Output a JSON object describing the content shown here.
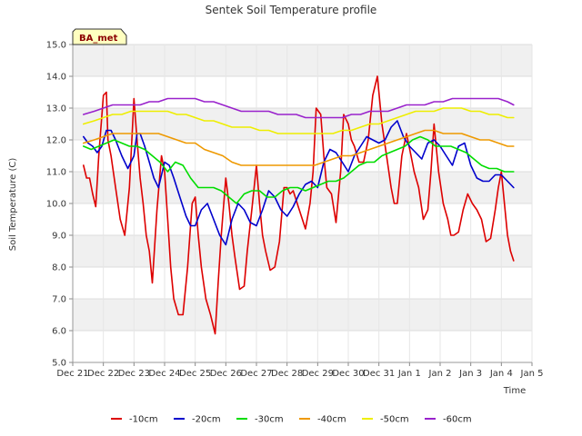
{
  "chart_data": {
    "type": "line",
    "title": "Sentek Soil Temperature profile",
    "xlabel": "Time",
    "ylabel": "Soil Temperature (C)",
    "badge": "BA_met",
    "ylim": [
      5.0,
      15.0
    ],
    "yticks": [
      "5.0",
      "6.0",
      "7.0",
      "8.0",
      "9.0",
      "10.0",
      "11.0",
      "12.0",
      "13.0",
      "14.0",
      "15.0"
    ],
    "xlim": [
      0,
      15
    ],
    "xticks": [
      "Dec 21",
      "Dec 22",
      "Dec 23",
      "Dec 24",
      "Dec 25",
      "Dec 26",
      "Dec 27",
      "Dec 28",
      "Dec 29",
      "Dec 30",
      "Dec 31",
      "Jan 1",
      "Jan 2",
      "Jan 3",
      "Jan 4",
      "Jan 5"
    ],
    "grid": true,
    "legend_position": "bottom",
    "series": [
      {
        "name": "-10cm",
        "color": "#dd0000",
        "x": [
          0.35,
          0.45,
          0.55,
          0.65,
          0.75,
          0.85,
          1.0,
          1.1,
          1.15,
          1.25,
          1.4,
          1.55,
          1.7,
          1.85,
          2.0,
          2.1,
          2.2,
          2.3,
          2.4,
          2.5,
          2.6,
          2.75,
          2.9,
          3.0,
          3.1,
          3.2,
          3.3,
          3.45,
          3.6,
          3.75,
          3.9,
          4.0,
          4.1,
          4.2,
          4.35,
          4.5,
          4.65,
          4.75,
          4.85,
          5.0,
          5.1,
          5.2,
          5.3,
          5.45,
          5.6,
          5.7,
          5.85,
          6.0,
          6.1,
          6.2,
          6.3,
          6.45,
          6.6,
          6.75,
          6.9,
          7.0,
          7.1,
          7.2,
          7.4,
          7.6,
          7.75,
          7.85,
          7.95,
          8.1,
          8.2,
          8.3,
          8.45,
          8.6,
          8.75,
          8.85,
          9.0,
          9.1,
          9.2,
          9.35,
          9.5,
          9.65,
          9.8,
          9.95,
          10.1,
          10.25,
          10.4,
          10.5,
          10.6,
          10.75,
          10.9,
          11.05,
          11.15,
          11.3,
          11.45,
          11.6,
          11.7,
          11.8,
          11.95,
          12.1,
          12.25,
          12.35,
          12.45,
          12.6,
          12.75,
          12.9,
          13.05,
          13.2,
          13.35,
          13.5,
          13.65,
          13.8,
          13.9,
          14.0,
          14.1,
          14.2,
          14.3,
          14.4
        ],
        "values": [
          11.2,
          10.8,
          10.8,
          10.3,
          9.9,
          11.5,
          13.4,
          13.5,
          12.0,
          11.5,
          10.5,
          9.5,
          9.0,
          10.5,
          13.3,
          12.0,
          10.8,
          10.0,
          9.0,
          8.5,
          7.5,
          9.8,
          11.5,
          11.0,
          9.5,
          8.0,
          7.0,
          6.5,
          6.5,
          8.0,
          10.0,
          10.2,
          9.0,
          8.0,
          7.0,
          6.5,
          5.9,
          7.5,
          9.0,
          10.8,
          10.0,
          9.0,
          8.3,
          7.3,
          7.4,
          8.5,
          9.8,
          11.2,
          10.0,
          9.0,
          8.5,
          7.9,
          8.0,
          8.8,
          10.5,
          10.5,
          10.3,
          10.4,
          9.8,
          9.2,
          10.0,
          11.0,
          13.0,
          12.8,
          11.5,
          10.5,
          10.3,
          9.4,
          11.0,
          12.8,
          12.5,
          12.0,
          11.8,
          11.3,
          11.3,
          12.0,
          13.4,
          14.0,
          12.5,
          11.5,
          10.5,
          10.0,
          10.0,
          11.5,
          12.2,
          11.5,
          11.0,
          10.5,
          9.5,
          9.8,
          11.0,
          12.5,
          11.0,
          10.0,
          9.5,
          9.0,
          9.0,
          9.1,
          9.8,
          10.3,
          10.0,
          9.8,
          9.5,
          8.8,
          8.9,
          9.8,
          10.5,
          11.0,
          10.0,
          9.0,
          8.5,
          8.2
        ]
      },
      {
        "name": "-20cm",
        "color": "#0000cc",
        "x": [
          0.35,
          0.5,
          0.65,
          0.8,
          0.95,
          1.1,
          1.25,
          1.4,
          1.6,
          1.8,
          2.0,
          2.1,
          2.2,
          2.35,
          2.5,
          2.65,
          2.8,
          3.0,
          3.15,
          3.3,
          3.5,
          3.7,
          3.85,
          4.0,
          4.2,
          4.4,
          4.6,
          4.8,
          5.0,
          5.2,
          5.4,
          5.6,
          5.8,
          6.0,
          6.2,
          6.4,
          6.6,
          6.8,
          7.0,
          7.2,
          7.4,
          7.6,
          7.8,
          8.0,
          8.2,
          8.4,
          8.6,
          8.8,
          9.0,
          9.2,
          9.4,
          9.6,
          9.8,
          10.0,
          10.2,
          10.4,
          10.6,
          10.8,
          11.0,
          11.2,
          11.4,
          11.6,
          11.8,
          12.0,
          12.2,
          12.4,
          12.6,
          12.8,
          13.0,
          13.2,
          13.4,
          13.6,
          13.8,
          14.0,
          14.2,
          14.4
        ],
        "values": [
          12.1,
          11.9,
          11.8,
          11.6,
          11.8,
          12.3,
          12.3,
          12.0,
          11.5,
          11.1,
          11.5,
          12.2,
          12.2,
          11.8,
          11.3,
          10.8,
          10.5,
          11.3,
          11.2,
          10.8,
          10.2,
          9.6,
          9.3,
          9.3,
          9.8,
          10.0,
          9.5,
          9.0,
          8.7,
          9.5,
          10.0,
          9.8,
          9.4,
          9.3,
          9.8,
          10.4,
          10.2,
          9.8,
          9.6,
          9.9,
          10.3,
          10.6,
          10.7,
          10.5,
          11.3,
          11.7,
          11.6,
          11.3,
          11.0,
          11.5,
          11.8,
          12.1,
          12.0,
          11.9,
          12.0,
          12.4,
          12.6,
          12.1,
          11.8,
          11.6,
          11.4,
          11.9,
          12.0,
          11.8,
          11.5,
          11.2,
          11.8,
          11.9,
          11.2,
          10.8,
          10.7,
          10.7,
          10.9,
          10.9,
          10.7,
          10.5
        ]
      },
      {
        "name": "-30cm",
        "color": "#00dd00",
        "x": [
          0.35,
          0.6,
          0.85,
          1.1,
          1.35,
          1.6,
          1.85,
          2.1,
          2.35,
          2.6,
          2.85,
          3.1,
          3.35,
          3.6,
          3.85,
          4.1,
          4.35,
          4.6,
          4.85,
          5.1,
          5.35,
          5.6,
          5.85,
          6.1,
          6.35,
          6.6,
          6.85,
          7.1,
          7.35,
          7.6,
          7.85,
          8.1,
          8.35,
          8.6,
          8.85,
          9.1,
          9.35,
          9.6,
          9.85,
          10.1,
          10.35,
          10.6,
          10.85,
          11.1,
          11.35,
          11.6,
          11.85,
          12.1,
          12.35,
          12.6,
          12.85,
          13.1,
          13.35,
          13.6,
          13.85,
          14.1,
          14.4
        ],
        "values": [
          11.8,
          11.7,
          11.8,
          11.9,
          12.0,
          11.9,
          11.8,
          11.8,
          11.7,
          11.5,
          11.3,
          11.0,
          11.3,
          11.2,
          10.8,
          10.5,
          10.5,
          10.5,
          10.4,
          10.2,
          10.0,
          10.3,
          10.4,
          10.4,
          10.2,
          10.2,
          10.4,
          10.5,
          10.5,
          10.4,
          10.5,
          10.6,
          10.7,
          10.7,
          10.8,
          11.0,
          11.2,
          11.3,
          11.3,
          11.5,
          11.6,
          11.7,
          11.8,
          12.0,
          12.1,
          12.0,
          11.8,
          11.8,
          11.8,
          11.7,
          11.6,
          11.4,
          11.2,
          11.1,
          11.1,
          11.0,
          11.0
        ]
      },
      {
        "name": "-40cm",
        "color": "#ee9900",
        "x": [
          0.35,
          0.7,
          1.0,
          1.3,
          1.6,
          1.9,
          2.2,
          2.5,
          2.8,
          3.1,
          3.4,
          3.7,
          4.0,
          4.3,
          4.6,
          4.9,
          5.2,
          5.5,
          5.8,
          6.1,
          6.4,
          6.7,
          7.0,
          7.3,
          7.6,
          7.9,
          8.2,
          8.5,
          8.8,
          9.1,
          9.4,
          9.7,
          10.0,
          10.3,
          10.6,
          10.9,
          11.2,
          11.5,
          11.8,
          12.1,
          12.4,
          12.7,
          13.0,
          13.3,
          13.6,
          13.9,
          14.2,
          14.4
        ],
        "values": [
          11.9,
          12.0,
          12.1,
          12.2,
          12.2,
          12.2,
          12.2,
          12.2,
          12.2,
          12.1,
          12.0,
          11.9,
          11.9,
          11.7,
          11.6,
          11.5,
          11.3,
          11.2,
          11.2,
          11.2,
          11.2,
          11.2,
          11.2,
          11.2,
          11.2,
          11.2,
          11.3,
          11.4,
          11.5,
          11.5,
          11.6,
          11.7,
          11.8,
          11.9,
          12.0,
          12.1,
          12.2,
          12.3,
          12.3,
          12.2,
          12.2,
          12.2,
          12.1,
          12.0,
          12.0,
          11.9,
          11.8,
          11.8
        ]
      },
      {
        "name": "-50cm",
        "color": "#eeee00",
        "x": [
          0.35,
          0.7,
          1.0,
          1.3,
          1.6,
          1.9,
          2.2,
          2.5,
          2.8,
          3.1,
          3.4,
          3.7,
          4.0,
          4.3,
          4.6,
          4.9,
          5.2,
          5.5,
          5.8,
          6.1,
          6.4,
          6.7,
          7.0,
          7.3,
          7.6,
          7.9,
          8.2,
          8.5,
          8.8,
          9.1,
          9.4,
          9.7,
          10.0,
          10.3,
          10.6,
          10.9,
          11.2,
          11.5,
          11.8,
          12.1,
          12.4,
          12.7,
          13.0,
          13.3,
          13.6,
          13.9,
          14.2,
          14.4
        ],
        "values": [
          12.5,
          12.6,
          12.7,
          12.8,
          12.8,
          12.9,
          12.9,
          12.9,
          12.9,
          12.9,
          12.8,
          12.8,
          12.7,
          12.6,
          12.6,
          12.5,
          12.4,
          12.4,
          12.4,
          12.3,
          12.3,
          12.2,
          12.2,
          12.2,
          12.2,
          12.2,
          12.2,
          12.2,
          12.3,
          12.3,
          12.4,
          12.5,
          12.5,
          12.6,
          12.7,
          12.8,
          12.9,
          12.9,
          12.9,
          13.0,
          13.0,
          13.0,
          12.9,
          12.9,
          12.8,
          12.8,
          12.7,
          12.7
        ]
      },
      {
        "name": "-60cm",
        "color": "#9922cc",
        "x": [
          0.35,
          0.7,
          1.0,
          1.3,
          1.6,
          1.9,
          2.2,
          2.5,
          2.8,
          3.1,
          3.4,
          3.7,
          4.0,
          4.3,
          4.6,
          4.9,
          5.2,
          5.5,
          5.8,
          6.1,
          6.4,
          6.7,
          7.0,
          7.3,
          7.6,
          7.9,
          8.2,
          8.5,
          8.8,
          9.1,
          9.4,
          9.7,
          10.0,
          10.3,
          10.6,
          10.9,
          11.2,
          11.5,
          11.8,
          12.1,
          12.4,
          12.7,
          13.0,
          13.3,
          13.6,
          13.9,
          14.2,
          14.4
        ],
        "values": [
          12.8,
          12.9,
          13.0,
          13.1,
          13.1,
          13.1,
          13.1,
          13.2,
          13.2,
          13.3,
          13.3,
          13.3,
          13.3,
          13.2,
          13.2,
          13.1,
          13.0,
          12.9,
          12.9,
          12.9,
          12.9,
          12.8,
          12.8,
          12.8,
          12.7,
          12.7,
          12.7,
          12.7,
          12.7,
          12.8,
          12.8,
          12.9,
          12.9,
          12.9,
          13.0,
          13.1,
          13.1,
          13.1,
          13.2,
          13.2,
          13.3,
          13.3,
          13.3,
          13.3,
          13.3,
          13.3,
          13.2,
          13.1
        ]
      }
    ]
  }
}
